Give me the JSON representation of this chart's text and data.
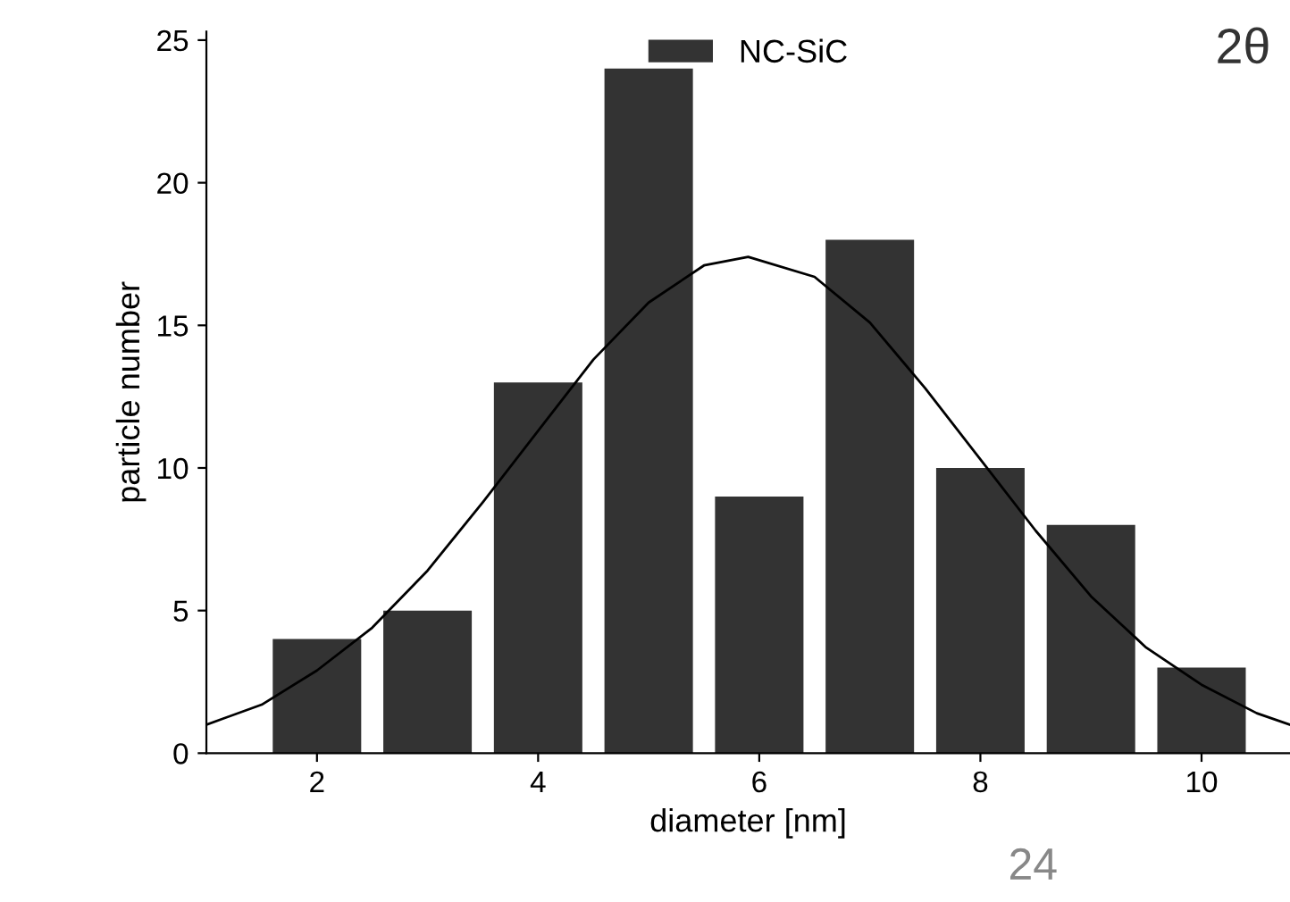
{
  "chart_data": {
    "type": "bar",
    "xlabel": "diameter [nm]",
    "ylabel": "particle number",
    "x": [
      2,
      3,
      4,
      5,
      6,
      7,
      8,
      9,
      10
    ],
    "series": [
      {
        "name": "NC-SiC",
        "color": "#333333",
        "values": [
          4,
          5,
          13,
          24,
          9,
          18,
          10,
          8,
          3
        ]
      },
      {
        "type": "line",
        "color": "#000000",
        "x": [
          1,
          1.5,
          2,
          2.5,
          3,
          3.5,
          4,
          4.5,
          5,
          5.5,
          5.9,
          6.5,
          7,
          7.5,
          8,
          8.5,
          9,
          9.5,
          10,
          10.5,
          10.8
        ],
        "values": [
          1.0,
          1.7,
          2.9,
          4.4,
          6.4,
          8.8,
          11.3,
          13.8,
          15.8,
          17.1,
          17.4,
          16.7,
          15.1,
          12.8,
          10.3,
          7.8,
          5.5,
          3.7,
          2.4,
          1.4,
          1.0
        ]
      }
    ],
    "xlim": [
      1,
      10.8
    ],
    "xticks": [
      2,
      4,
      6,
      8,
      10
    ],
    "ylim": [
      0,
      25.3
    ],
    "yticks": [
      0,
      5,
      10,
      15,
      20,
      25
    ],
    "legend": "top",
    "grid": false,
    "annotations": [
      "2θ",
      "24"
    ]
  }
}
